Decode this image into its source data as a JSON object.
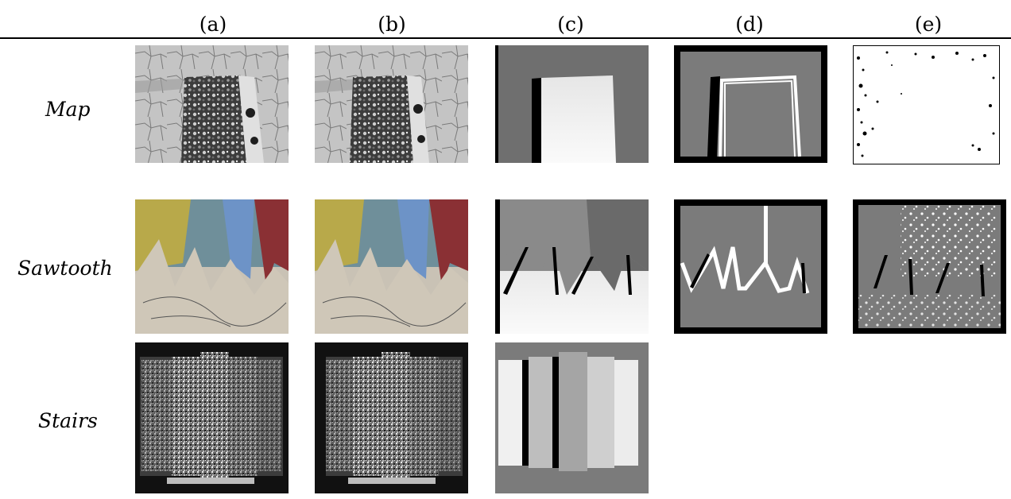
{
  "columns": [
    "(a)",
    "(b)",
    "(c)",
    "(d)",
    "(e)"
  ],
  "rows": [
    {
      "label": "Map"
    },
    {
      "label": "Sawtooth"
    },
    {
      "label": "Stairs"
    }
  ],
  "panel_kinds": {
    "a": "left stereo image",
    "b": "right stereo image",
    "c": "ground-truth disparity map",
    "d": "depth discontinuity / occlusion map",
    "e": "error map"
  },
  "colors": {
    "gray": "#7b7b7b",
    "white": "#ffffff",
    "black": "#000000"
  }
}
